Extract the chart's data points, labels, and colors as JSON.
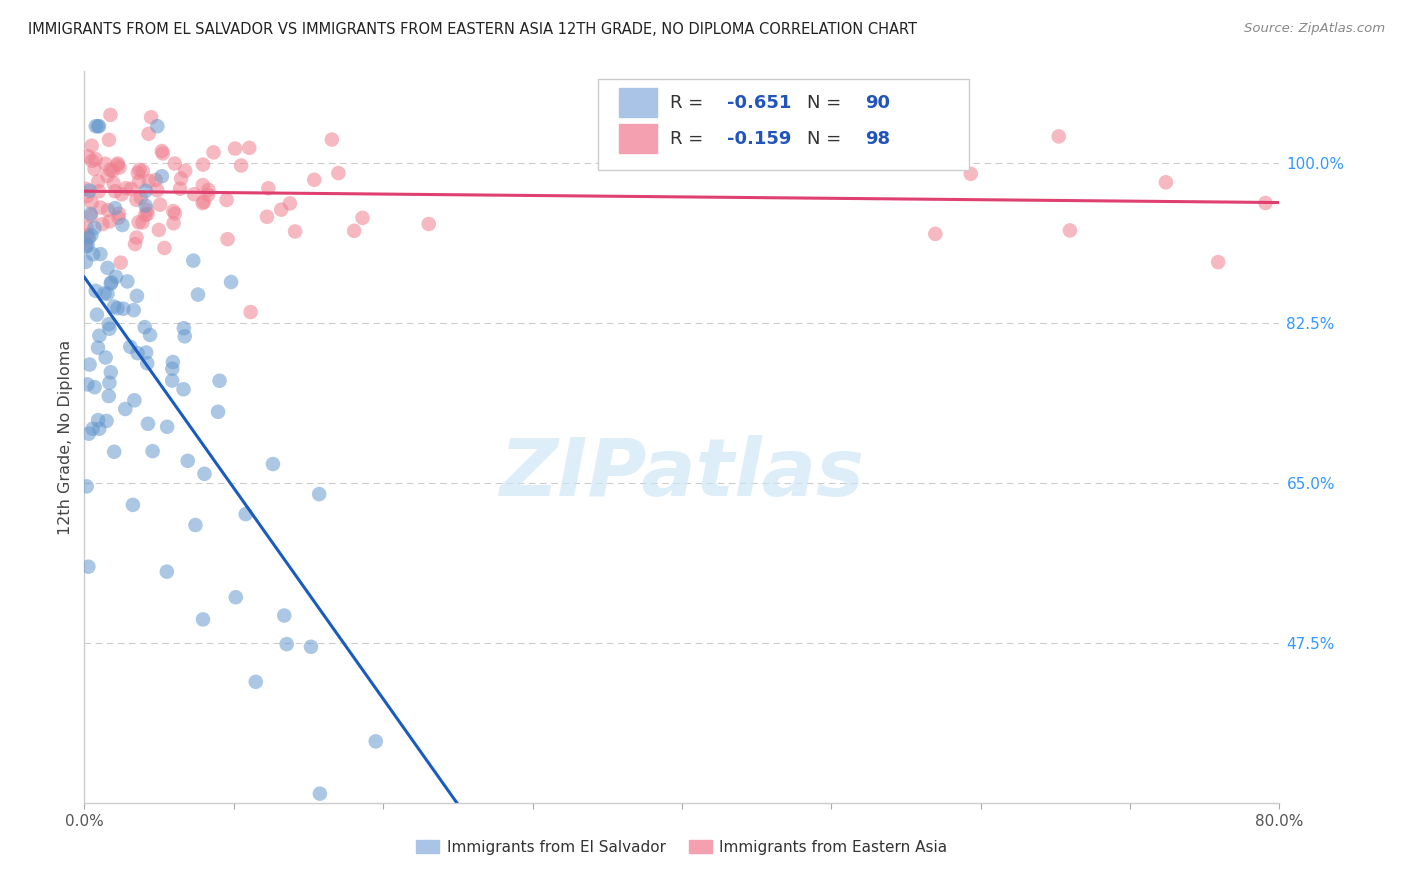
{
  "title": "IMMIGRANTS FROM EL SALVADOR VS IMMIGRANTS FROM EASTERN ASIA 12TH GRADE, NO DIPLOMA CORRELATION CHART",
  "source": "Source: ZipAtlas.com",
  "ylabel": "12th Grade, No Diploma",
  "xmin": 0.0,
  "xmax": 0.8,
  "ymin": 0.3,
  "ymax": 1.1,
  "yticks": [
    0.475,
    0.65,
    0.825,
    1.0
  ],
  "ytick_labels": [
    "47.5%",
    "65.0%",
    "82.5%",
    "100.0%"
  ],
  "el_salvador_color": "#6699cc",
  "eastern_asia_color": "#f08090",
  "el_salvador_line_color": "#1a5bbf",
  "eastern_asia_line_color": "#e04070",
  "regression_line_dash_color": "#aaaaaa",
  "background_color": "#ffffff",
  "grid_color": "#cccccc",
  "watermark": "ZIPatlas",
  "legend_blue_color": "#aac4e8",
  "legend_pink_color": "#f4a0b0",
  "legend_text_color": "#333333",
  "legend_number_color": "#2255bb",
  "R_es": "-0.651",
  "N_es": "90",
  "R_ea": "-0.159",
  "N_ea": "98",
  "bottom_legend_es": "Immigrants from El Salvador",
  "bottom_legend_ea": "Immigrants from Eastern Asia"
}
